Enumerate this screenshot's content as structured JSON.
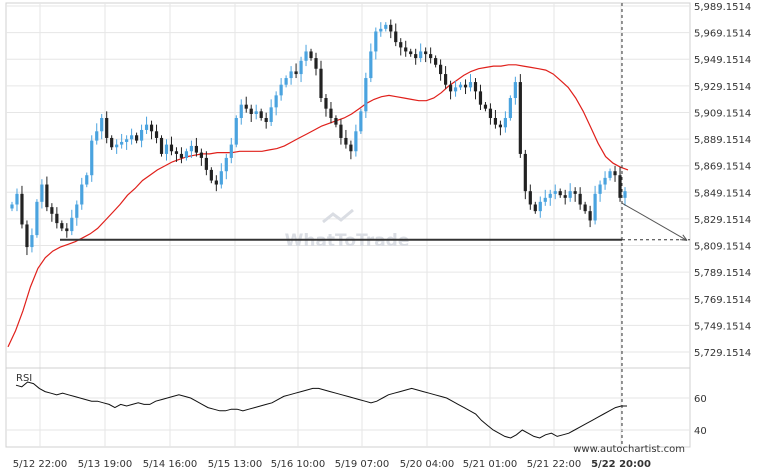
{
  "watermark": "WhatToTrade",
  "credit": "www.autochartist.com",
  "colors": {
    "up": "#4aa3df",
    "down": "#222222",
    "ma": "#e0201b",
    "level": "#333333",
    "grid": "#e6e6e6",
    "axis": "#d0d0d0",
    "text": "#333333",
    "rsi": "#111111"
  },
  "chart_data": [
    {
      "type": "candlestick",
      "title": "",
      "y_ticks": [
        "5,989.1514",
        "5,969.1514",
        "5,949.1514",
        "5,929.1514",
        "5,909.1514",
        "5,889.1514",
        "5,869.1514",
        "5,849.1514",
        "5,829.1514",
        "5,809.1514",
        "5,789.1514",
        "5,769.1514",
        "5,749.1514",
        "5,729.1514"
      ],
      "y_tick_values": [
        5989.1514,
        5969.1514,
        5949.1514,
        5929.1514,
        5909.1514,
        5889.1514,
        5869.1514,
        5849.1514,
        5829.1514,
        5809.1514,
        5789.1514,
        5769.1514,
        5749.1514,
        5729.1514
      ],
      "ylim": [
        5715,
        5995
      ],
      "x_ticks": [
        "5/12 22:00",
        "5/13 19:00",
        "5/14 16:00",
        "5/15 13:00",
        "5/16 10:00",
        "5/19 07:00",
        "5/20 04:00",
        "5/21 01:00",
        "5/21 22:00",
        "5/22 20:00"
      ],
      "support_level": 5813.5,
      "current_price": 5841,
      "forecast_target": 5813,
      "close_path": [
        5840,
        5848,
        5825,
        5808,
        5817,
        5842,
        5855,
        5838,
        5833,
        5826,
        5822,
        5820,
        5830,
        5840,
        5855,
        5862,
        5888,
        5895,
        5905,
        5890,
        5883,
        5885,
        5887,
        5889,
        5892,
        5888,
        5896,
        5900,
        5895,
        5890,
        5878,
        5885,
        5880,
        5878,
        5875,
        5880,
        5884,
        5879,
        5875,
        5866,
        5858,
        5855,
        5865,
        5875,
        5885,
        5905,
        5915,
        5912,
        5908,
        5910,
        5905,
        5902,
        5913,
        5922,
        5930,
        5935,
        5940,
        5938,
        5948,
        5955,
        5950,
        5942,
        5920,
        5912,
        5905,
        5900,
        5890,
        5885,
        5880,
        5895,
        5910,
        5935,
        5955,
        5970,
        5972,
        5975,
        5970,
        5962,
        5958,
        5955,
        5953,
        5950,
        5955,
        5953,
        5950,
        5945,
        5938,
        5930,
        5925,
        5928,
        5930,
        5928,
        5932,
        5925,
        5915,
        5912,
        5905,
        5900,
        5898,
        5905,
        5920,
        5932,
        5878,
        5850,
        5840,
        5835,
        5842,
        5845,
        5848,
        5850,
        5847,
        5845,
        5850,
        5848,
        5840,
        5835,
        5828,
        5848,
        5855,
        5860,
        5865,
        5862,
        5845,
        5850
      ],
      "ma_path": [
        5733,
        5745,
        5760,
        5778,
        5792,
        5800,
        5805,
        5808,
        5810,
        5812,
        5815,
        5818,
        5822,
        5828,
        5834,
        5840,
        5847,
        5852,
        5858,
        5862,
        5866,
        5869,
        5872,
        5874,
        5876,
        5877,
        5878,
        5878,
        5879,
        5879,
        5879,
        5880,
        5880,
        5880,
        5880,
        5881,
        5882,
        5884,
        5887,
        5890,
        5893,
        5896,
        5899,
        5901,
        5903,
        5905,
        5908,
        5912,
        5916,
        5919,
        5921,
        5922,
        5921,
        5920,
        5919,
        5918,
        5918,
        5920,
        5924,
        5929,
        5933,
        5937,
        5940,
        5942,
        5943,
        5944,
        5944,
        5945,
        5945,
        5944,
        5943,
        5942,
        5941,
        5938,
        5933,
        5928,
        5920,
        5910,
        5898,
        5886,
        5876,
        5871,
        5868,
        5866
      ],
      "rsi": {
        "label": "RSI",
        "ticks": [
          "60",
          "40"
        ],
        "tick_values": [
          60,
          40
        ],
        "ylim": [
          30,
          75
        ],
        "values": [
          68,
          67,
          70,
          69,
          66,
          64,
          63,
          62,
          63,
          62,
          61,
          60,
          59,
          58,
          58,
          57,
          56,
          54,
          56,
          55,
          56,
          57,
          56,
          56,
          58,
          59,
          60,
          61,
          62,
          61,
          60,
          58,
          56,
          54,
          53,
          52,
          52,
          53,
          53,
          52,
          53,
          54,
          55,
          56,
          57,
          59,
          61,
          62,
          63,
          64,
          65,
          66,
          66,
          65,
          64,
          63,
          62,
          61,
          60,
          59,
          58,
          57,
          58,
          60,
          62,
          63,
          64,
          65,
          66,
          65,
          64,
          63,
          62,
          61,
          60,
          58,
          56,
          54,
          52,
          50,
          46,
          43,
          40,
          38,
          36,
          35,
          37,
          40,
          38,
          36,
          35,
          37,
          38,
          36,
          37,
          38,
          40,
          42,
          44,
          46,
          48,
          50,
          52,
          54,
          55,
          55
        ]
      }
    }
  ]
}
